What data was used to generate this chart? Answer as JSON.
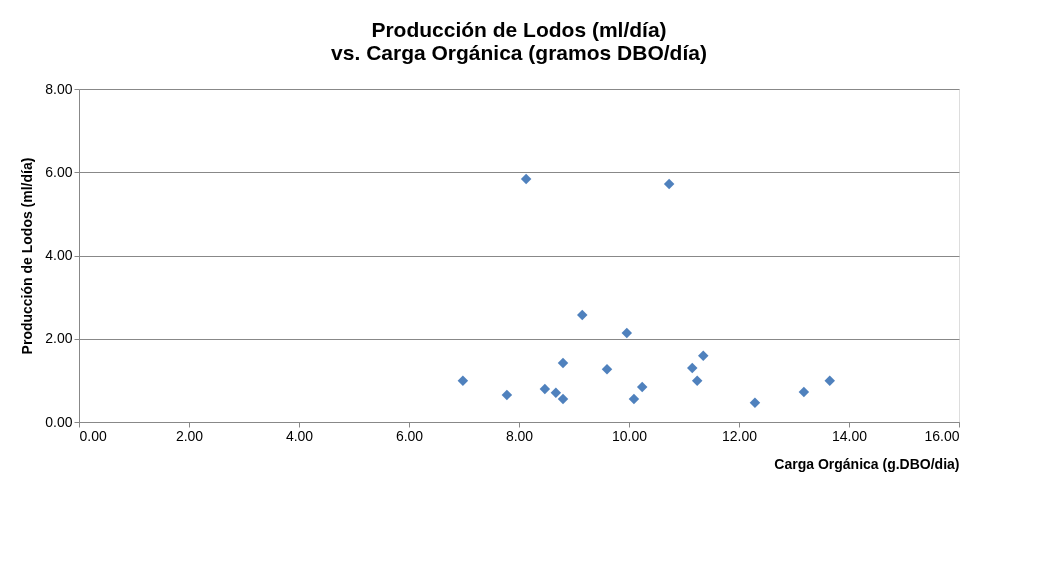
{
  "chart_data": {
    "type": "scatter",
    "title": [
      "Producción de Lodos (ml/día)",
      "vs. Carga Orgánica (gramos DBO/día)"
    ],
    "xlabel": "Carga Orgánica (g.DBO/dia)",
    "ylabel": "Producción de Lodos (ml/día)",
    "x": [
      6.98,
      7.78,
      8.13,
      8.47,
      8.67,
      8.8,
      8.8,
      9.15,
      9.6,
      9.96,
      10.09,
      10.24,
      10.73,
      11.15,
      11.24,
      11.35,
      12.29,
      13.18,
      13.65
    ],
    "series": [
      {
        "color": "#4f81bd",
        "values": [
          0.99,
          0.65,
          5.84,
          0.79,
          0.7,
          1.42,
          0.55,
          2.57,
          1.27,
          2.14,
          0.55,
          0.84,
          5.72,
          1.3,
          0.99,
          1.59,
          0.46,
          0.72,
          0.99
        ]
      }
    ],
    "xlim": [
      0,
      16
    ],
    "ylim": [
      0,
      8
    ],
    "xticks": [
      {
        "value": 0,
        "label": "0.00"
      },
      {
        "value": 2,
        "label": "2.00"
      },
      {
        "value": 4,
        "label": "4.00"
      },
      {
        "value": 6,
        "label": "6.00"
      },
      {
        "value": 8,
        "label": "8.00"
      },
      {
        "value": 10,
        "label": "10.00"
      },
      {
        "value": 12,
        "label": "12.00"
      },
      {
        "value": 14,
        "label": "14.00"
      },
      {
        "value": 16,
        "label": "16.00"
      }
    ],
    "yticks": [
      {
        "value": 0,
        "label": "0.00"
      },
      {
        "value": 2,
        "label": "2.00"
      },
      {
        "value": 4,
        "label": "4.00"
      },
      {
        "value": 6,
        "label": "6.00"
      },
      {
        "value": 8,
        "label": "8.00"
      }
    ],
    "grid": "y",
    "marker": "diamond"
  }
}
